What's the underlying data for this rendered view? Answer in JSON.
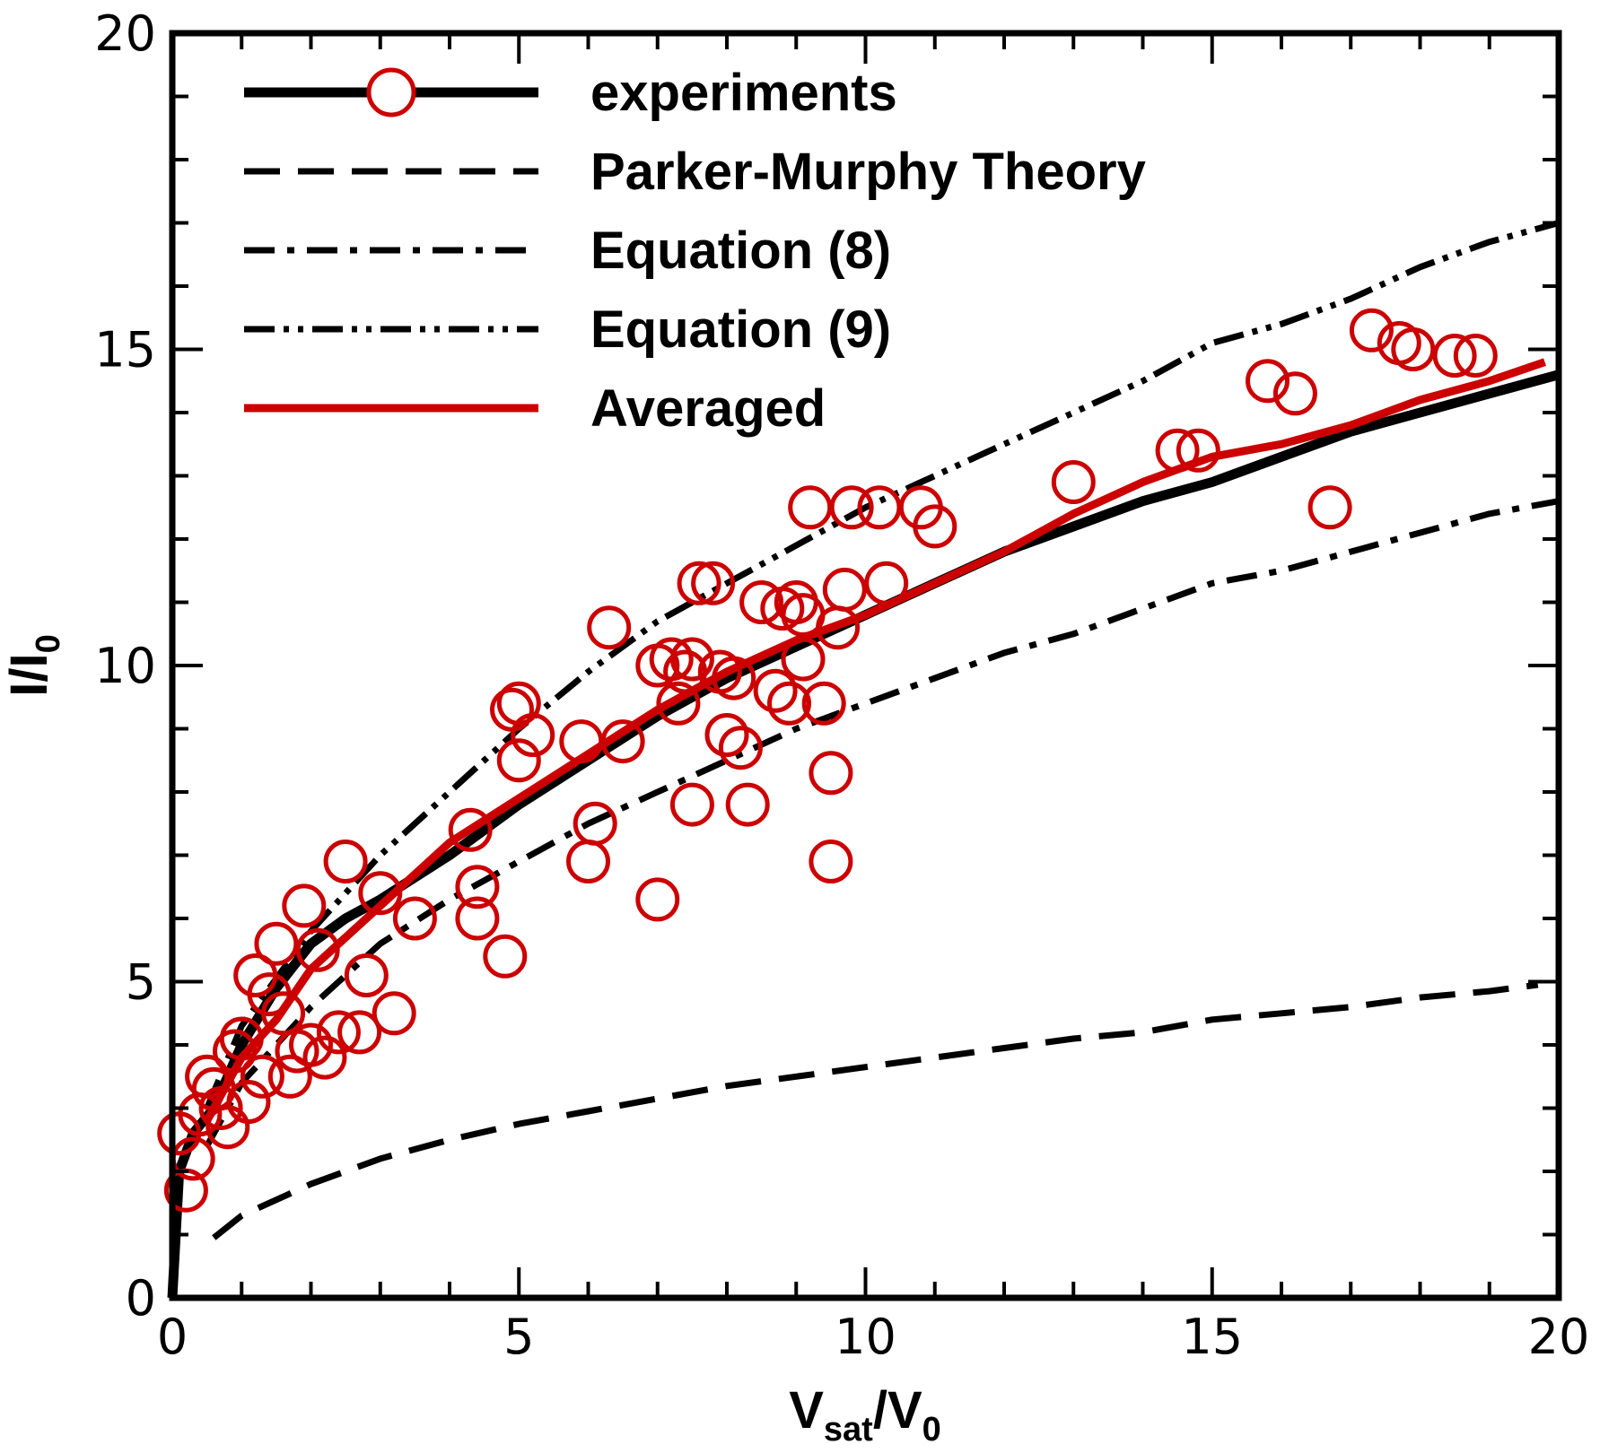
{
  "chart_data": {
    "type": "line",
    "title": "",
    "xlabel": {
      "main": "V",
      "sub": "sat",
      "mid": "/V",
      "sub2": "0"
    },
    "ylabel": {
      "main": "I/I",
      "sub": "0"
    },
    "xlim": [
      0,
      20
    ],
    "ylim": [
      0,
      20
    ],
    "xticks": [
      "0",
      "5",
      "10",
      "15",
      "20"
    ],
    "yticks": [
      "0",
      "5",
      "10",
      "15",
      "20"
    ],
    "grid": false,
    "legend_position": "top-left",
    "series": [
      {
        "name": "experiments",
        "style": "solid-thick",
        "color": "#000000",
        "legend_marker": "circle",
        "x": [
          0,
          0.1,
          0.3,
          0.6,
          1,
          1.5,
          2,
          2.5,
          3,
          4,
          5,
          6,
          7,
          8,
          9,
          10,
          11,
          12,
          13,
          14,
          15,
          16,
          17,
          18,
          19,
          20
        ],
        "y": [
          0,
          2.0,
          2.6,
          3.0,
          4.0,
          4.9,
          5.6,
          6.0,
          6.3,
          7.0,
          7.8,
          8.5,
          9.2,
          9.8,
          10.3,
          10.8,
          11.3,
          11.8,
          12.2,
          12.6,
          12.9,
          13.3,
          13.7,
          14.0,
          14.3,
          14.6
        ]
      },
      {
        "name": "Parker-Murphy Theory",
        "style": "dashed",
        "color": "#000000",
        "x": [
          0.6,
          1,
          2,
          3,
          4,
          5,
          6,
          7,
          8,
          9,
          10,
          11,
          12,
          13,
          14,
          15,
          16,
          17,
          18,
          19,
          19.7
        ],
        "y": [
          0.95,
          1.3,
          1.8,
          2.2,
          2.5,
          2.75,
          2.95,
          3.15,
          3.35,
          3.5,
          3.65,
          3.8,
          3.95,
          4.1,
          4.2,
          4.4,
          4.5,
          4.6,
          4.75,
          4.85,
          4.95
        ]
      },
      {
        "name": "Equation (8)",
        "style": "dash-dot",
        "color": "#000000",
        "x": [
          0.5,
          1,
          2,
          3,
          4,
          5,
          6,
          7,
          8,
          9,
          10,
          11,
          12,
          13,
          14,
          15,
          16,
          17,
          18,
          19,
          20
        ],
        "y": [
          2.4,
          3.4,
          4.6,
          5.6,
          6.3,
          6.9,
          7.5,
          8.0,
          8.5,
          9.0,
          9.4,
          9.8,
          10.2,
          10.5,
          10.9,
          11.3,
          11.5,
          11.8,
          12.1,
          12.4,
          12.6
        ]
      },
      {
        "name": "Equation (9)",
        "style": "dash-dot-dot",
        "color": "#000000",
        "x": [
          0.5,
          1,
          2,
          3,
          4,
          5,
          6,
          7,
          8,
          9,
          10,
          11,
          12,
          13,
          14,
          15,
          16,
          17,
          18,
          19,
          20
        ],
        "y": [
          3.0,
          4.3,
          5.8,
          7.0,
          8.0,
          9.0,
          9.9,
          10.7,
          11.3,
          11.9,
          12.5,
          13.0,
          13.5,
          14.0,
          14.5,
          15.1,
          15.4,
          15.8,
          16.3,
          16.7,
          17.0
        ]
      },
      {
        "name": "Averaged",
        "style": "solid",
        "color": "#cc0000",
        "x": [
          0.5,
          1,
          1.5,
          2,
          3,
          4,
          5,
          6,
          7,
          8,
          9,
          10,
          11,
          12,
          13,
          14,
          15,
          16,
          17,
          18,
          19,
          19.8
        ],
        "y": [
          2.8,
          3.8,
          4.4,
          5.2,
          6.2,
          7.2,
          7.9,
          8.6,
          9.3,
          9.9,
          10.4,
          10.8,
          11.3,
          11.8,
          12.4,
          12.9,
          13.3,
          13.5,
          13.8,
          14.2,
          14.5,
          14.8
        ]
      }
    ],
    "scatter": {
      "name": "experiments",
      "color": "#cc0000",
      "x": [
        0.1,
        0.2,
        0.3,
        0.4,
        0.5,
        0.6,
        0.7,
        0.8,
        0.9,
        1.0,
        1.1,
        1.2,
        1.3,
        1.4,
        1.5,
        1.6,
        1.7,
        1.8,
        1.9,
        2.0,
        2.1,
        2.2,
        2.4,
        2.5,
        2.7,
        2.8,
        3.0,
        3.2,
        3.5,
        4.3,
        4.4,
        4.4,
        4.8,
        4.9,
        5.0,
        5.0,
        5.2,
        5.9,
        6.0,
        6.1,
        6.3,
        6.5,
        7.0,
        7.0,
        7.2,
        7.3,
        7.4,
        7.5,
        7.5,
        7.6,
        7.8,
        7.9,
        8.0,
        8.1,
        8.2,
        8.3,
        8.5,
        8.7,
        8.8,
        8.9,
        9.0,
        9.1,
        9.1,
        9.2,
        9.4,
        9.5,
        9.5,
        9.6,
        9.7,
        9.8,
        10.2,
        10.3,
        10.8,
        11.0,
        13.0,
        14.5,
        14.8,
        15.8,
        16.2,
        16.7,
        17.3,
        17.7,
        17.9,
        18.5,
        18.8
      ],
      "y": [
        2.6,
        1.7,
        2.2,
        2.9,
        3.5,
        3.3,
        3.0,
        2.7,
        3.9,
        4.1,
        3.1,
        5.1,
        3.5,
        4.8,
        5.6,
        4.5,
        3.5,
        3.9,
        6.2,
        4.0,
        5.5,
        3.8,
        4.2,
        6.9,
        4.2,
        5.1,
        6.4,
        4.5,
        6.0,
        7.4,
        6.5,
        6.0,
        5.4,
        9.3,
        9.4,
        8.5,
        8.9,
        8.8,
        6.9,
        7.5,
        10.6,
        8.8,
        6.3,
        10.0,
        10.1,
        9.4,
        9.9,
        10.1,
        7.8,
        11.3,
        11.3,
        9.9,
        8.9,
        9.8,
        8.7,
        7.8,
        11.0,
        9.6,
        10.9,
        9.4,
        11.0,
        10.1,
        10.8,
        12.5,
        9.4,
        6.9,
        8.3,
        10.6,
        11.2,
        12.5,
        12.5,
        11.3,
        12.5,
        12.2,
        12.9,
        13.4,
        13.4,
        14.5,
        14.3,
        12.5,
        15.3,
        15.1,
        15.0,
        14.9,
        14.9
      ]
    }
  }
}
